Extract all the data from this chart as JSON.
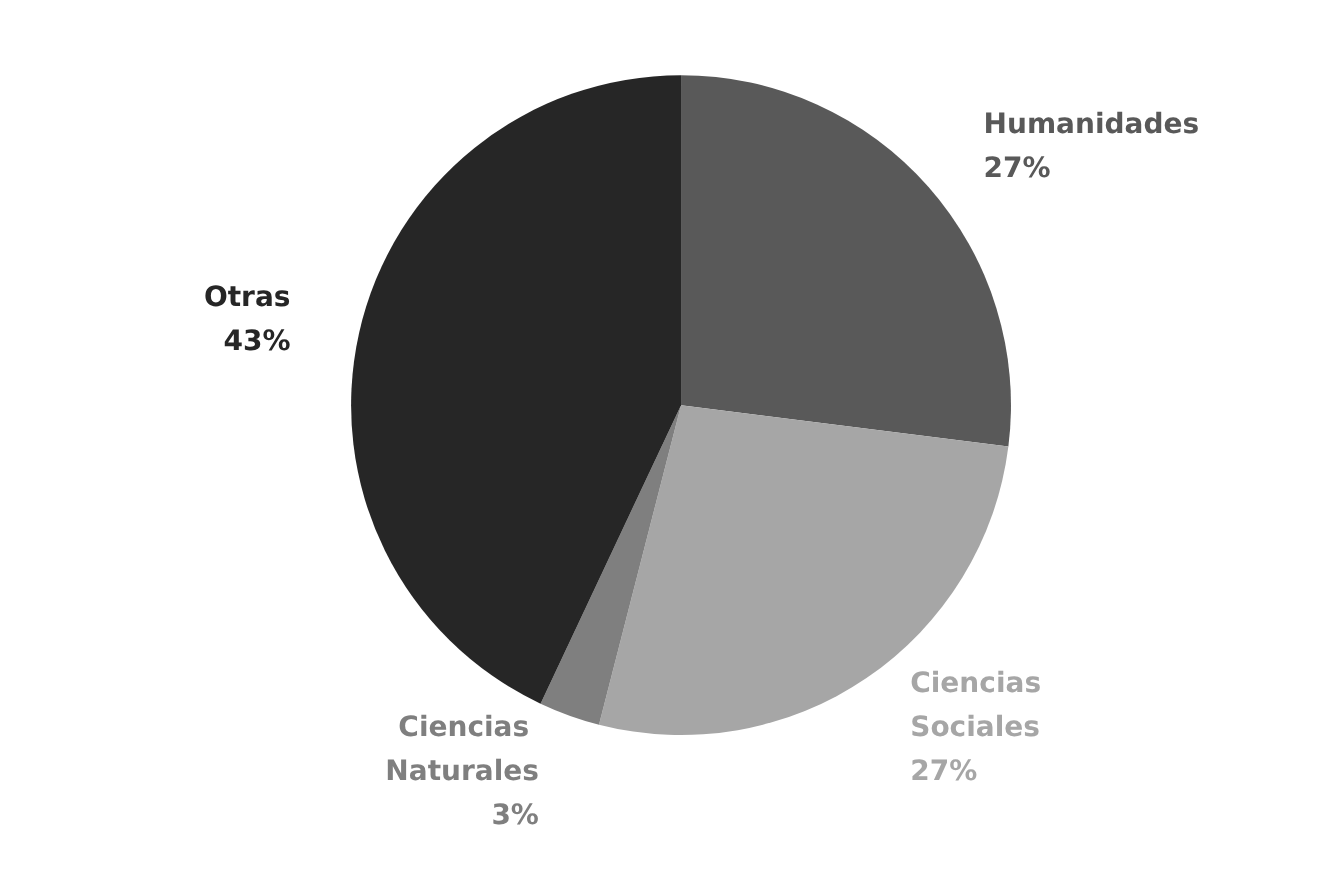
{
  "chart_data": {
    "type": "pie",
    "categories": [
      "Humanidades",
      "Ciencias Sociales",
      "Ciencias Naturales",
      "Otras"
    ],
    "values": [
      27,
      27,
      3,
      43
    ],
    "colors": [
      "#595959",
      "#a6a6a6",
      "#7f7f7f",
      "#262626"
    ],
    "value_labels": [
      "27%",
      "27%",
      "3%",
      "43%"
    ]
  }
}
